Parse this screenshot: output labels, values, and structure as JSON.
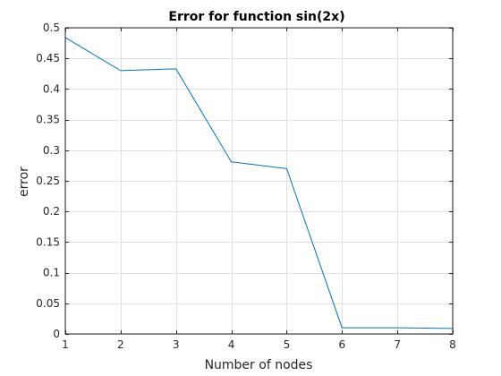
{
  "chart_data": {
    "type": "line",
    "title": "Error for function sin(2x)",
    "xlabel": "Number of nodes",
    "ylabel": "error",
    "xlim": [
      1,
      8
    ],
    "ylim": [
      0,
      0.5
    ],
    "xticks": [
      1,
      2,
      3,
      4,
      5,
      6,
      7,
      8
    ],
    "xtick_labels": [
      "1",
      "2",
      "3",
      "4",
      "5",
      "6",
      "7",
      "8"
    ],
    "yticks": [
      0,
      0.05,
      0.1,
      0.15,
      0.2,
      0.25,
      0.3,
      0.35,
      0.4,
      0.45,
      0.5
    ],
    "ytick_labels": [
      "0",
      "0.05",
      "0.1",
      "0.15",
      "0.2",
      "0.25",
      "0.3",
      "0.35",
      "0.4",
      "0.45",
      "0.5"
    ],
    "grid": true,
    "legend": "none",
    "series": [
      {
        "color": "#0072bd",
        "x": [
          1,
          2,
          3,
          4,
          5,
          6,
          7,
          8
        ],
        "y": [
          0.484,
          0.43,
          0.433,
          0.281,
          0.27,
          0.01,
          0.01,
          0.009
        ]
      }
    ]
  }
}
